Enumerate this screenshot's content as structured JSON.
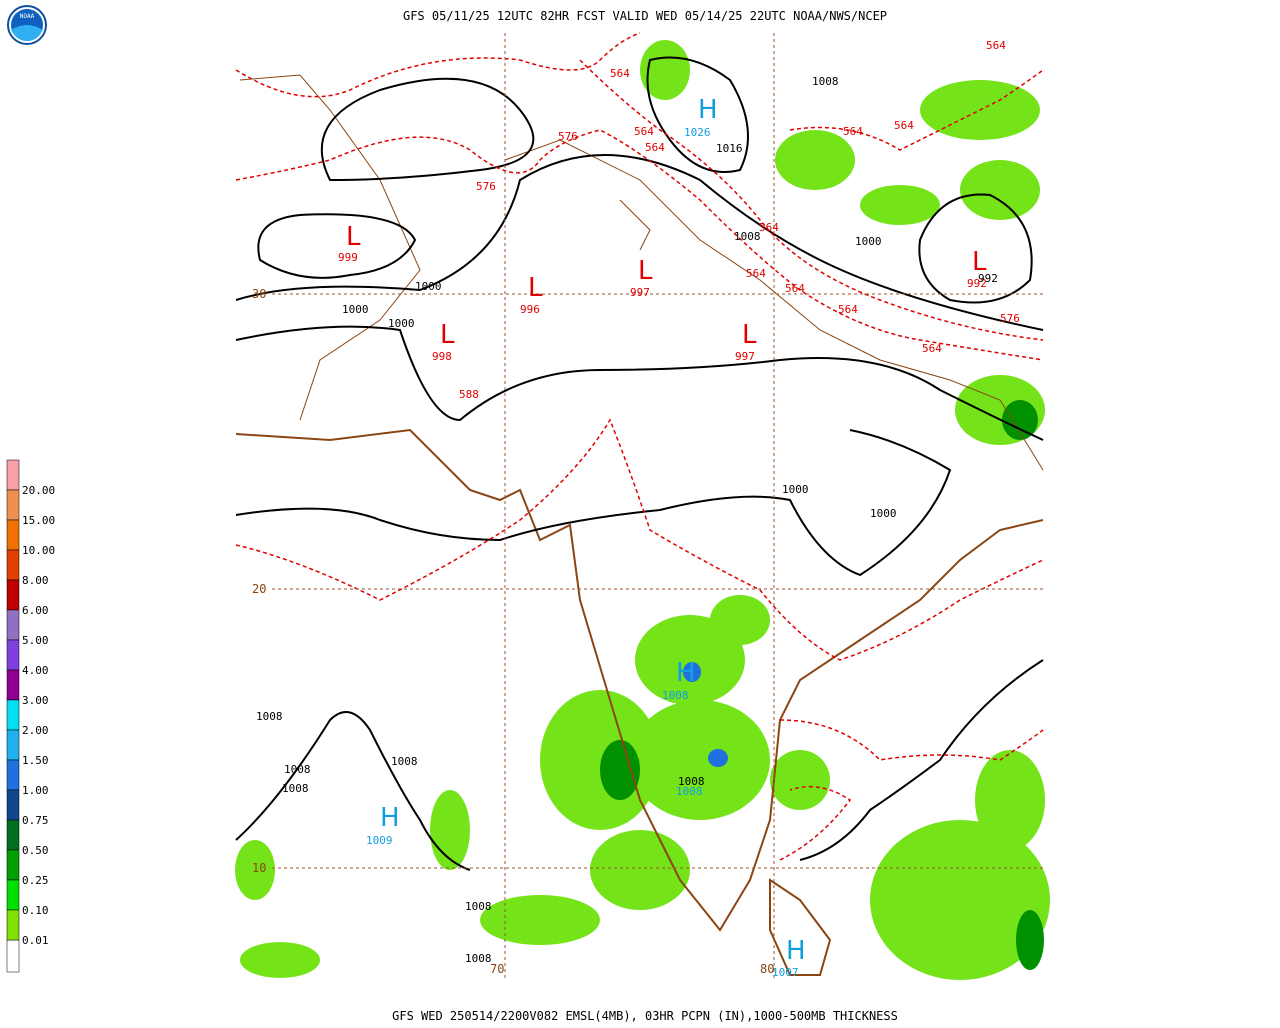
{
  "header": {
    "title": "GFS 05/11/25 12UTC 82HR FCST VALID WED 05/14/25 22UTC NOAA/NWS/NCEP"
  },
  "footer": {
    "caption": "GFS WED 250514/2200V082 EMSL(4MB), 03HR PCPN (IN),1000-500MB THICKNESS"
  },
  "logo": {
    "text": "NOAA"
  },
  "legend": {
    "items": [
      {
        "label": "20.00",
        "color": "#f8a0a8"
      },
      {
        "label": "15.00",
        "color": "#f09050"
      },
      {
        "label": "10.00",
        "color": "#f07000"
      },
      {
        "label": "8.00",
        "color": "#e04000"
      },
      {
        "label": "6.00",
        "color": "#c00000"
      },
      {
        "label": "5.00",
        "color": "#9070c0"
      },
      {
        "label": "4.00",
        "color": "#8040e0"
      },
      {
        "label": "3.00",
        "color": "#900090"
      },
      {
        "label": "2.00",
        "color": "#00e0f0"
      },
      {
        "label": "1.50",
        "color": "#20b0f0"
      },
      {
        "label": "1.00",
        "color": "#2070e0"
      },
      {
        "label": "0.75",
        "color": "#104890"
      },
      {
        "label": "0.50",
        "color": "#007020"
      },
      {
        "label": "0.25",
        "color": "#00a000"
      },
      {
        "label": "0.10",
        "color": "#00e000"
      },
      {
        "label": "0.01",
        "color": "#80e000"
      }
    ]
  },
  "map": {
    "colors": {
      "red": "#e00000",
      "black": "#000000",
      "blue": "#10a0e0",
      "brown": "#8b4513"
    },
    "labels": [
      {
        "text": "H",
        "color": "blue"
      },
      {
        "text": "1026",
        "color": "blue"
      },
      {
        "text": "1016",
        "color": "black"
      },
      {
        "text": "1008",
        "color": "black"
      },
      {
        "text": "L",
        "color": "red"
      },
      {
        "text": "999",
        "color": "red"
      },
      {
        "text": "L",
        "color": "red"
      },
      {
        "text": "996",
        "color": "red"
      },
      {
        "text": "L",
        "color": "red"
      },
      {
        "text": "997",
        "color": "red"
      },
      {
        "text": "L",
        "color": "red"
      },
      {
        "text": "997",
        "color": "red"
      },
      {
        "text": "L",
        "color": "red"
      },
      {
        "text": "998",
        "color": "red"
      },
      {
        "text": "L",
        "color": "red"
      },
      {
        "text": "992",
        "color": "red"
      },
      {
        "text": "992",
        "color": "black"
      },
      {
        "text": "1000",
        "color": "black"
      },
      {
        "text": "1000",
        "color": "black"
      },
      {
        "text": "1000",
        "color": "black"
      },
      {
        "text": "1008",
        "color": "black"
      },
      {
        "text": "1000",
        "color": "black"
      },
      {
        "text": "576",
        "color": "red"
      },
      {
        "text": "576",
        "color": "red"
      },
      {
        "text": "576",
        "color": "red"
      },
      {
        "text": "588",
        "color": "red"
      },
      {
        "text": "564",
        "color": "red"
      },
      {
        "text": "564",
        "color": "red"
      },
      {
        "text": "564",
        "color": "red"
      },
      {
        "text": "564",
        "color": "red"
      },
      {
        "text": "564",
        "color": "red"
      },
      {
        "text": "564",
        "color": "red"
      },
      {
        "text": "564",
        "color": "red"
      },
      {
        "text": "564",
        "color": "red"
      },
      {
        "text": "564",
        "color": "red"
      },
      {
        "text": "564",
        "color": "red"
      },
      {
        "text": "564",
        "color": "red"
      },
      {
        "text": "1000",
        "color": "black"
      },
      {
        "text": "1000",
        "color": "black"
      },
      {
        "text": "1008",
        "color": "black"
      },
      {
        "text": "1008",
        "color": "black"
      },
      {
        "text": "1008",
        "color": "black"
      },
      {
        "text": "1008",
        "color": "black"
      },
      {
        "text": "1008",
        "color": "black"
      },
      {
        "text": "1008",
        "color": "black"
      },
      {
        "text": "1008",
        "color": "black"
      },
      {
        "text": "H",
        "color": "blue"
      },
      {
        "text": "1008",
        "color": "blue"
      },
      {
        "text": "H",
        "color": "blue"
      },
      {
        "text": "1009",
        "color": "blue"
      },
      {
        "text": "H",
        "color": "blue"
      },
      {
        "text": "1007",
        "color": "blue"
      },
      {
        "text": "1008",
        "color": "blue"
      }
    ],
    "lat_labels": [
      "30",
      "20",
      "10"
    ],
    "lon_labels": [
      "70",
      "80"
    ]
  }
}
